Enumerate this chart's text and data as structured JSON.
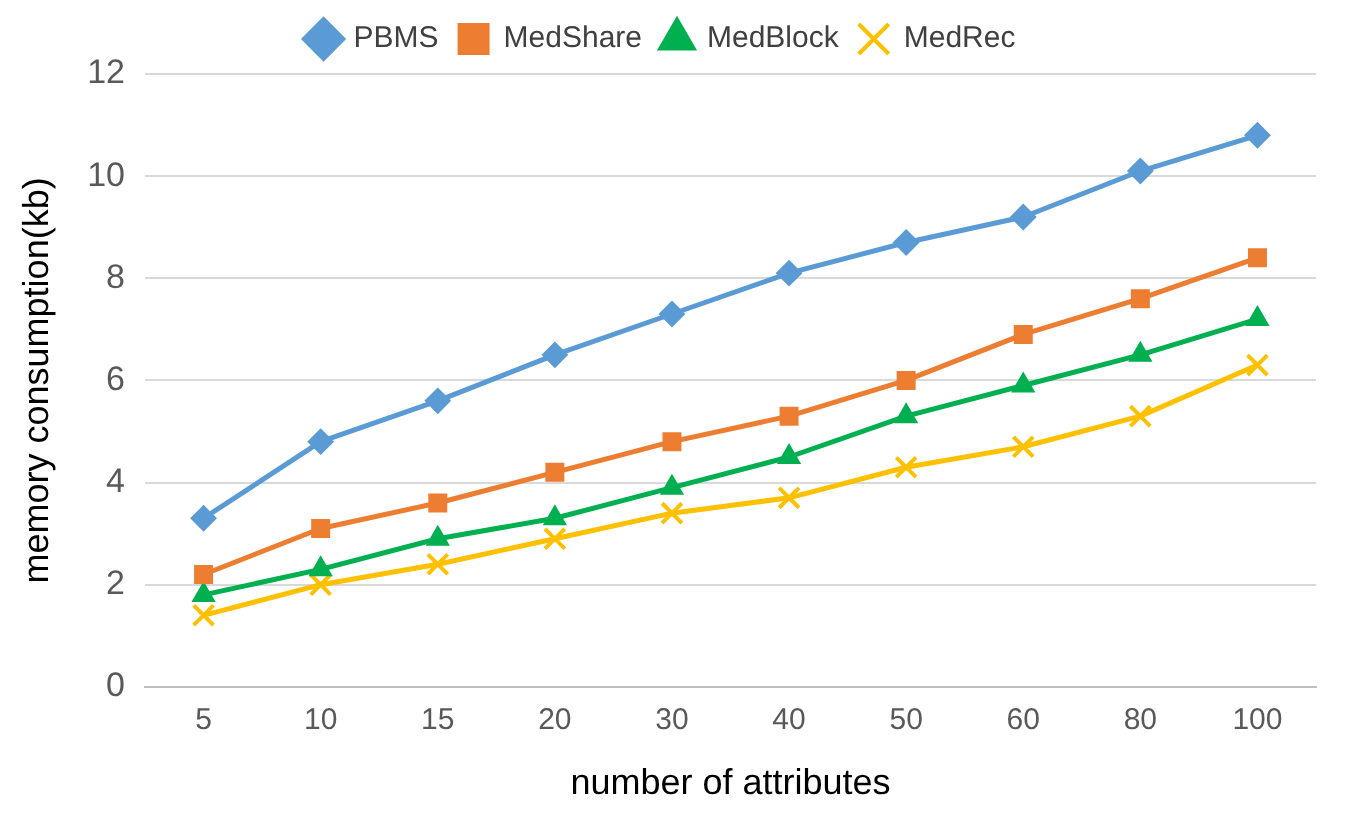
{
  "chart_data": {
    "type": "line",
    "xlabel": "number of attributes",
    "ylabel": "memory consumption(kb)",
    "categories": [
      "5",
      "10",
      "15",
      "20",
      "30",
      "40",
      "50",
      "60",
      "80",
      "100"
    ],
    "series": [
      {
        "name": "PBMS",
        "color": "#5b9bd5",
        "marker": "diamond",
        "values": [
          3.3,
          4.8,
          5.6,
          6.5,
          7.3,
          8.1,
          8.7,
          9.2,
          10.1,
          10.8
        ]
      },
      {
        "name": "MedShare",
        "color": "#ed7d31",
        "marker": "square",
        "values": [
          2.2,
          3.1,
          3.6,
          4.2,
          4.8,
          5.3,
          6.0,
          6.9,
          7.6,
          8.4
        ]
      },
      {
        "name": "MedBlock",
        "color": "#00b050",
        "marker": "triangle",
        "values": [
          1.8,
          2.3,
          2.9,
          3.3,
          3.9,
          4.5,
          5.3,
          5.9,
          6.5,
          7.2
        ]
      },
      {
        "name": "MedRec",
        "color": "#ffc000",
        "marker": "cross",
        "values": [
          1.4,
          2.0,
          2.4,
          2.9,
          3.4,
          3.7,
          4.3,
          4.7,
          5.3,
          6.3
        ]
      }
    ],
    "ylim": [
      0,
      12
    ],
    "yticks": [
      0,
      2,
      4,
      6,
      8,
      10,
      12
    ],
    "grid": "y",
    "legend": "top"
  }
}
